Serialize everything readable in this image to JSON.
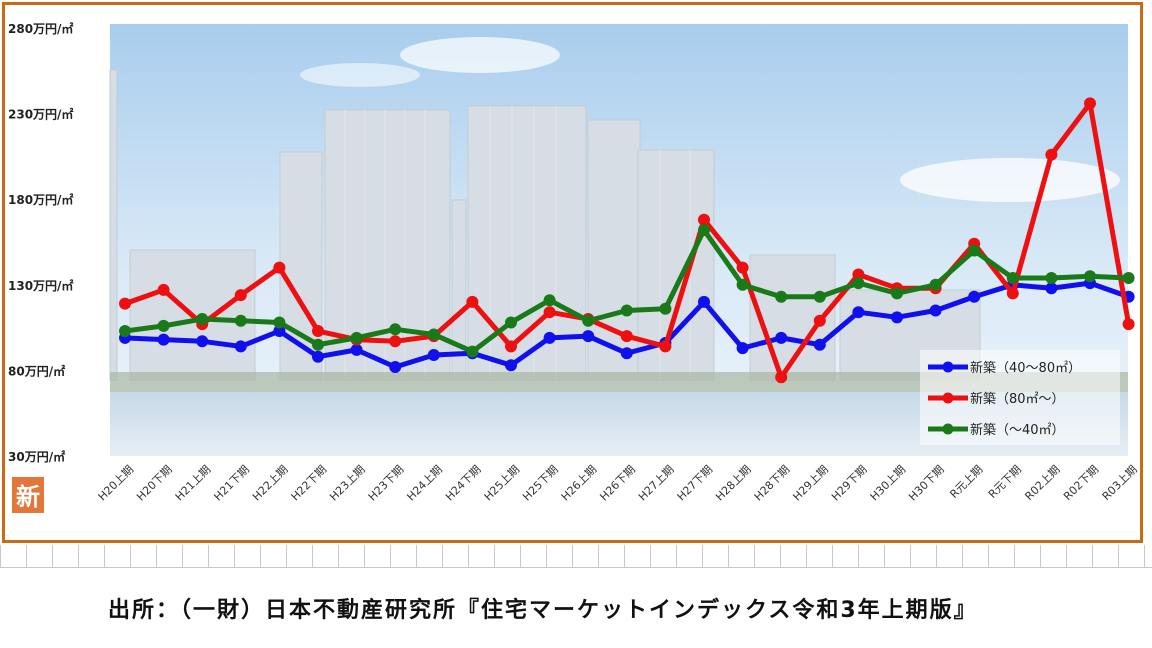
{
  "source_note": "出所：（一財）日本不動産研究所『住宅マーケットインデックス令和3年上期版』",
  "badge_char": "新",
  "colors": {
    "frame": "#cc6a14",
    "badge": "#e3763a",
    "series": [
      "#1010ee",
      "#ee1010",
      "#1a7a1a"
    ]
  },
  "chart_data": {
    "type": "line",
    "title": "",
    "xlabel": "",
    "ylabel": "",
    "ylim": [
      30,
      280
    ],
    "yticks": [
      30,
      80,
      130,
      180,
      230,
      280
    ],
    "ytick_labels": [
      "30万円/㎡",
      "80万円/㎡",
      "130万円/㎡",
      "180万円/㎡",
      "230万円/㎡",
      "280万円/㎡"
    ],
    "grid": false,
    "legend_position": "bottom-right",
    "categories": [
      "H20上期",
      "H20下期",
      "H21上期",
      "H21下期",
      "H22上期",
      "H22下期",
      "H23上期",
      "H23下期",
      "H24上期",
      "H24下期",
      "H25上期",
      "H25下期",
      "H26上期",
      "H26下期",
      "H27上期",
      "H27下期",
      "H28上期",
      "H28下期",
      "H29上期",
      "H29下期",
      "H30上期",
      "H30下期",
      "R元上期",
      "R元下期",
      "R02上期",
      "R02下期",
      "R03上期"
    ],
    "series": [
      {
        "name": "新築（40～80㎡）",
        "color": "#1010ee",
        "values": [
          99,
          98,
          97,
          94,
          103,
          88,
          92,
          82,
          89,
          90,
          83,
          99,
          100,
          90,
          96,
          120,
          93,
          99,
          95,
          114,
          111,
          115,
          123,
          130,
          128,
          131,
          123
        ]
      },
      {
        "name": "新築（80㎡～）",
        "color": "#ee1010",
        "values": [
          119,
          127,
          107,
          124,
          140,
          103,
          98,
          97,
          100,
          120,
          94,
          114,
          110,
          100,
          94,
          168,
          140,
          76,
          109,
          136,
          128,
          128,
          154,
          125,
          206,
          236,
          107
        ]
      },
      {
        "name": "新築（～40㎡）",
        "color": "#1a7a1a",
        "values": [
          103,
          106,
          110,
          109,
          108,
          95,
          99,
          104,
          101,
          91,
          108,
          121,
          109,
          115,
          116,
          162,
          130,
          123,
          123,
          131,
          125,
          130,
          150,
          134,
          134,
          135,
          134
        ]
      }
    ]
  }
}
